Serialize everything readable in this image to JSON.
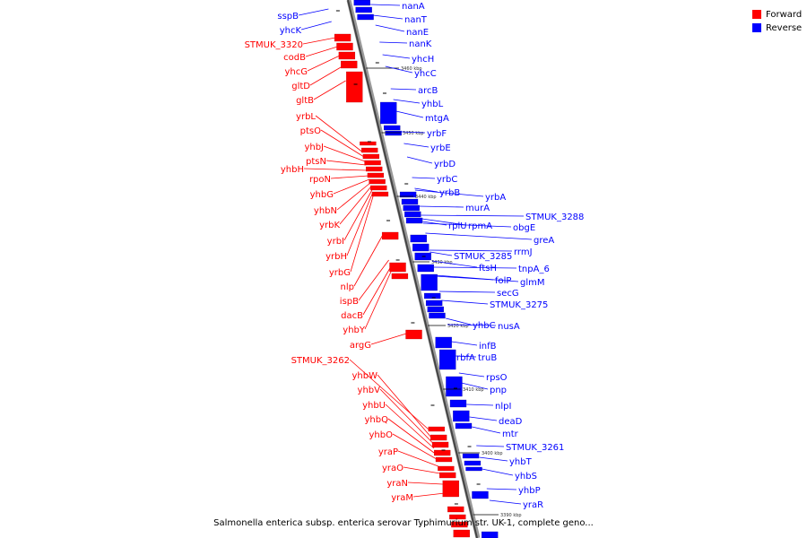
{
  "legend": {
    "forward_label": "Forward",
    "forward_color": "#ff0000",
    "reverse_label": "Reverse",
    "reverse_color": "#0000ff"
  },
  "caption": "Salmonella enterica subsp. enterica serovar Typhimurium str. UK-1, complete geno...",
  "scale_labels": [
    "3460 kbp",
    "3450 kbp",
    "3440 kbp",
    "3430 kbp",
    "3420 kbp",
    "3410 kbp",
    "3400 kbp",
    "3390 kbp"
  ],
  "forward_genes": [
    "sspB",
    "yhcK",
    "STMUK_3320",
    "codB",
    "yhcG",
    "gltD",
    "gltB",
    "yrbL",
    "ptsO",
    "yhbJ",
    "ptsN",
    "yhbH",
    "rpoN",
    "yhbG",
    "yhbN",
    "yrbK",
    "yrbI",
    "yrbH",
    "yrbG",
    "nlp",
    "ispB",
    "dacB",
    "yhbY",
    "argG",
    "STMUK_3262",
    "yhbW",
    "yhbV",
    "yhbU",
    "yhbQ",
    "yhbO",
    "yraP",
    "yraO",
    "yraN",
    "yraM"
  ],
  "reverse_genes": [
    "nanA",
    "nanT",
    "nanE",
    "nanK",
    "yhcH",
    "yhcC",
    "arcB",
    "yhbL",
    "mtgA",
    "yrbF",
    "yrbE",
    "yrbD",
    "yrbC",
    "yrbB",
    "yrbA",
    "murA",
    "rplU",
    "rpmA",
    "STMUK_3288",
    "obgE",
    "greA",
    "rrmJ",
    "STMUK_3285",
    "ftsH",
    "tnpA_6",
    "folP",
    "glmM",
    "secG",
    "STMUK_3275",
    "yhbC",
    "nusA",
    "infB",
    "rbfA",
    "truB",
    "rpsO",
    "pnp",
    "nlpI",
    "deaD",
    "mtr",
    "STMUK_3261",
    "yhbT",
    "yhbS",
    "yhbP",
    "yraR"
  ]
}
